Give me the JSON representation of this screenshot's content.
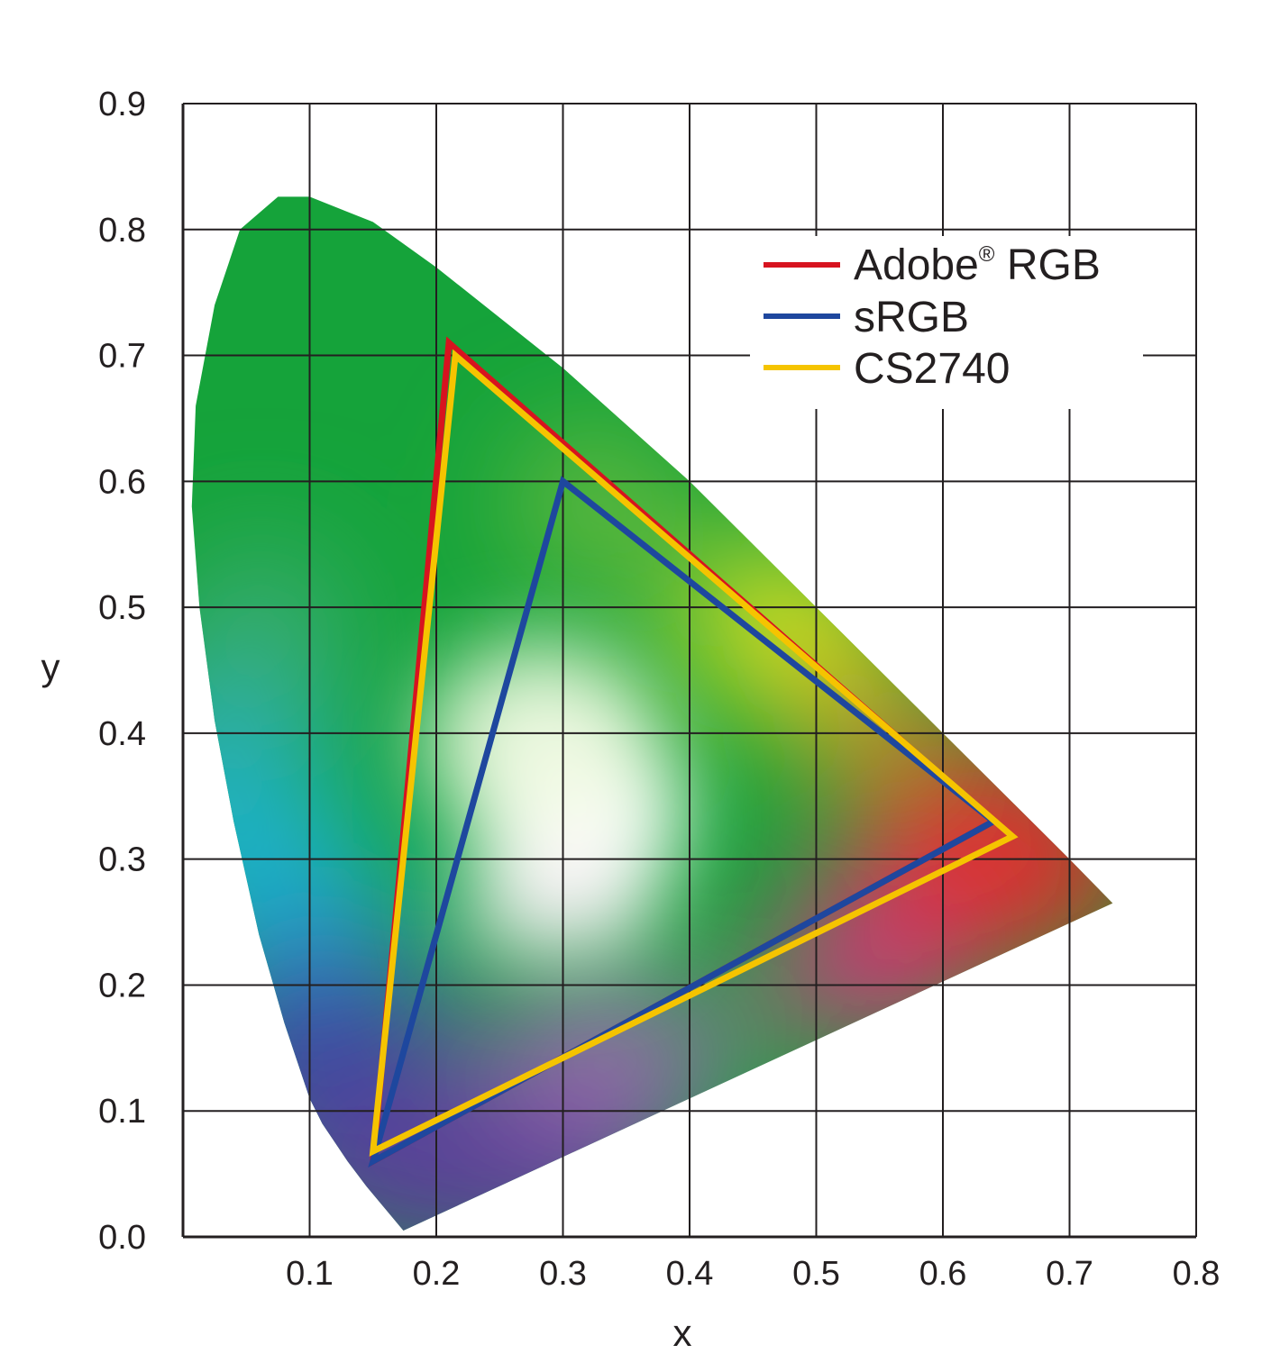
{
  "chart_data": {
    "type": "scatter",
    "subtype": "CIE 1931 chromaticity diagram with gamut triangles",
    "xlabel": "x",
    "ylabel": "y",
    "xlim": [
      0.0,
      0.8
    ],
    "ylim": [
      0.0,
      0.9
    ],
    "x_ticks": [
      "0.1",
      "0.2",
      "0.3",
      "0.4",
      "0.5",
      "0.6",
      "0.7",
      "0.8"
    ],
    "y_ticks": [
      "0.0",
      "0.1",
      "0.2",
      "0.3",
      "0.4",
      "0.5",
      "0.6",
      "0.7",
      "0.8",
      "0.9"
    ],
    "grid": true,
    "legend_position": "top-right",
    "spectral_locus": [
      [
        0.174,
        0.005
      ],
      [
        0.145,
        0.04
      ],
      [
        0.13,
        0.06
      ],
      [
        0.11,
        0.09
      ],
      [
        0.1,
        0.11
      ],
      [
        0.08,
        0.17
      ],
      [
        0.06,
        0.24
      ],
      [
        0.04,
        0.33
      ],
      [
        0.025,
        0.41
      ],
      [
        0.013,
        0.5
      ],
      [
        0.007,
        0.58
      ],
      [
        0.01,
        0.66
      ],
      [
        0.025,
        0.74
      ],
      [
        0.045,
        0.8
      ],
      [
        0.075,
        0.826
      ],
      [
        0.1,
        0.826
      ],
      [
        0.15,
        0.806
      ],
      [
        0.2,
        0.77
      ],
      [
        0.3,
        0.69
      ],
      [
        0.4,
        0.6
      ],
      [
        0.5,
        0.5
      ],
      [
        0.6,
        0.4
      ],
      [
        0.7,
        0.3
      ],
      [
        0.734,
        0.265
      ]
    ],
    "series": [
      {
        "name": "Adobe® RGB",
        "color": "#d7131f",
        "points": [
          [
            0.64,
            0.33
          ],
          [
            0.21,
            0.71
          ],
          [
            0.15,
            0.06
          ]
        ]
      },
      {
        "name": "sRGB",
        "color": "#1e479e",
        "points": [
          [
            0.64,
            0.33
          ],
          [
            0.3,
            0.6
          ],
          [
            0.15,
            0.06
          ]
        ]
      },
      {
        "name": "CS2740",
        "color": "#f5c400",
        "points": [
          [
            0.655,
            0.318
          ],
          [
            0.215,
            0.7
          ],
          [
            0.15,
            0.068
          ]
        ]
      }
    ]
  },
  "legend": {
    "adobe_name": "Adobe",
    "adobe_reg": "®",
    "adobe_suffix": " RGB",
    "srgb": "sRGB",
    "cs2740": "CS2740"
  }
}
